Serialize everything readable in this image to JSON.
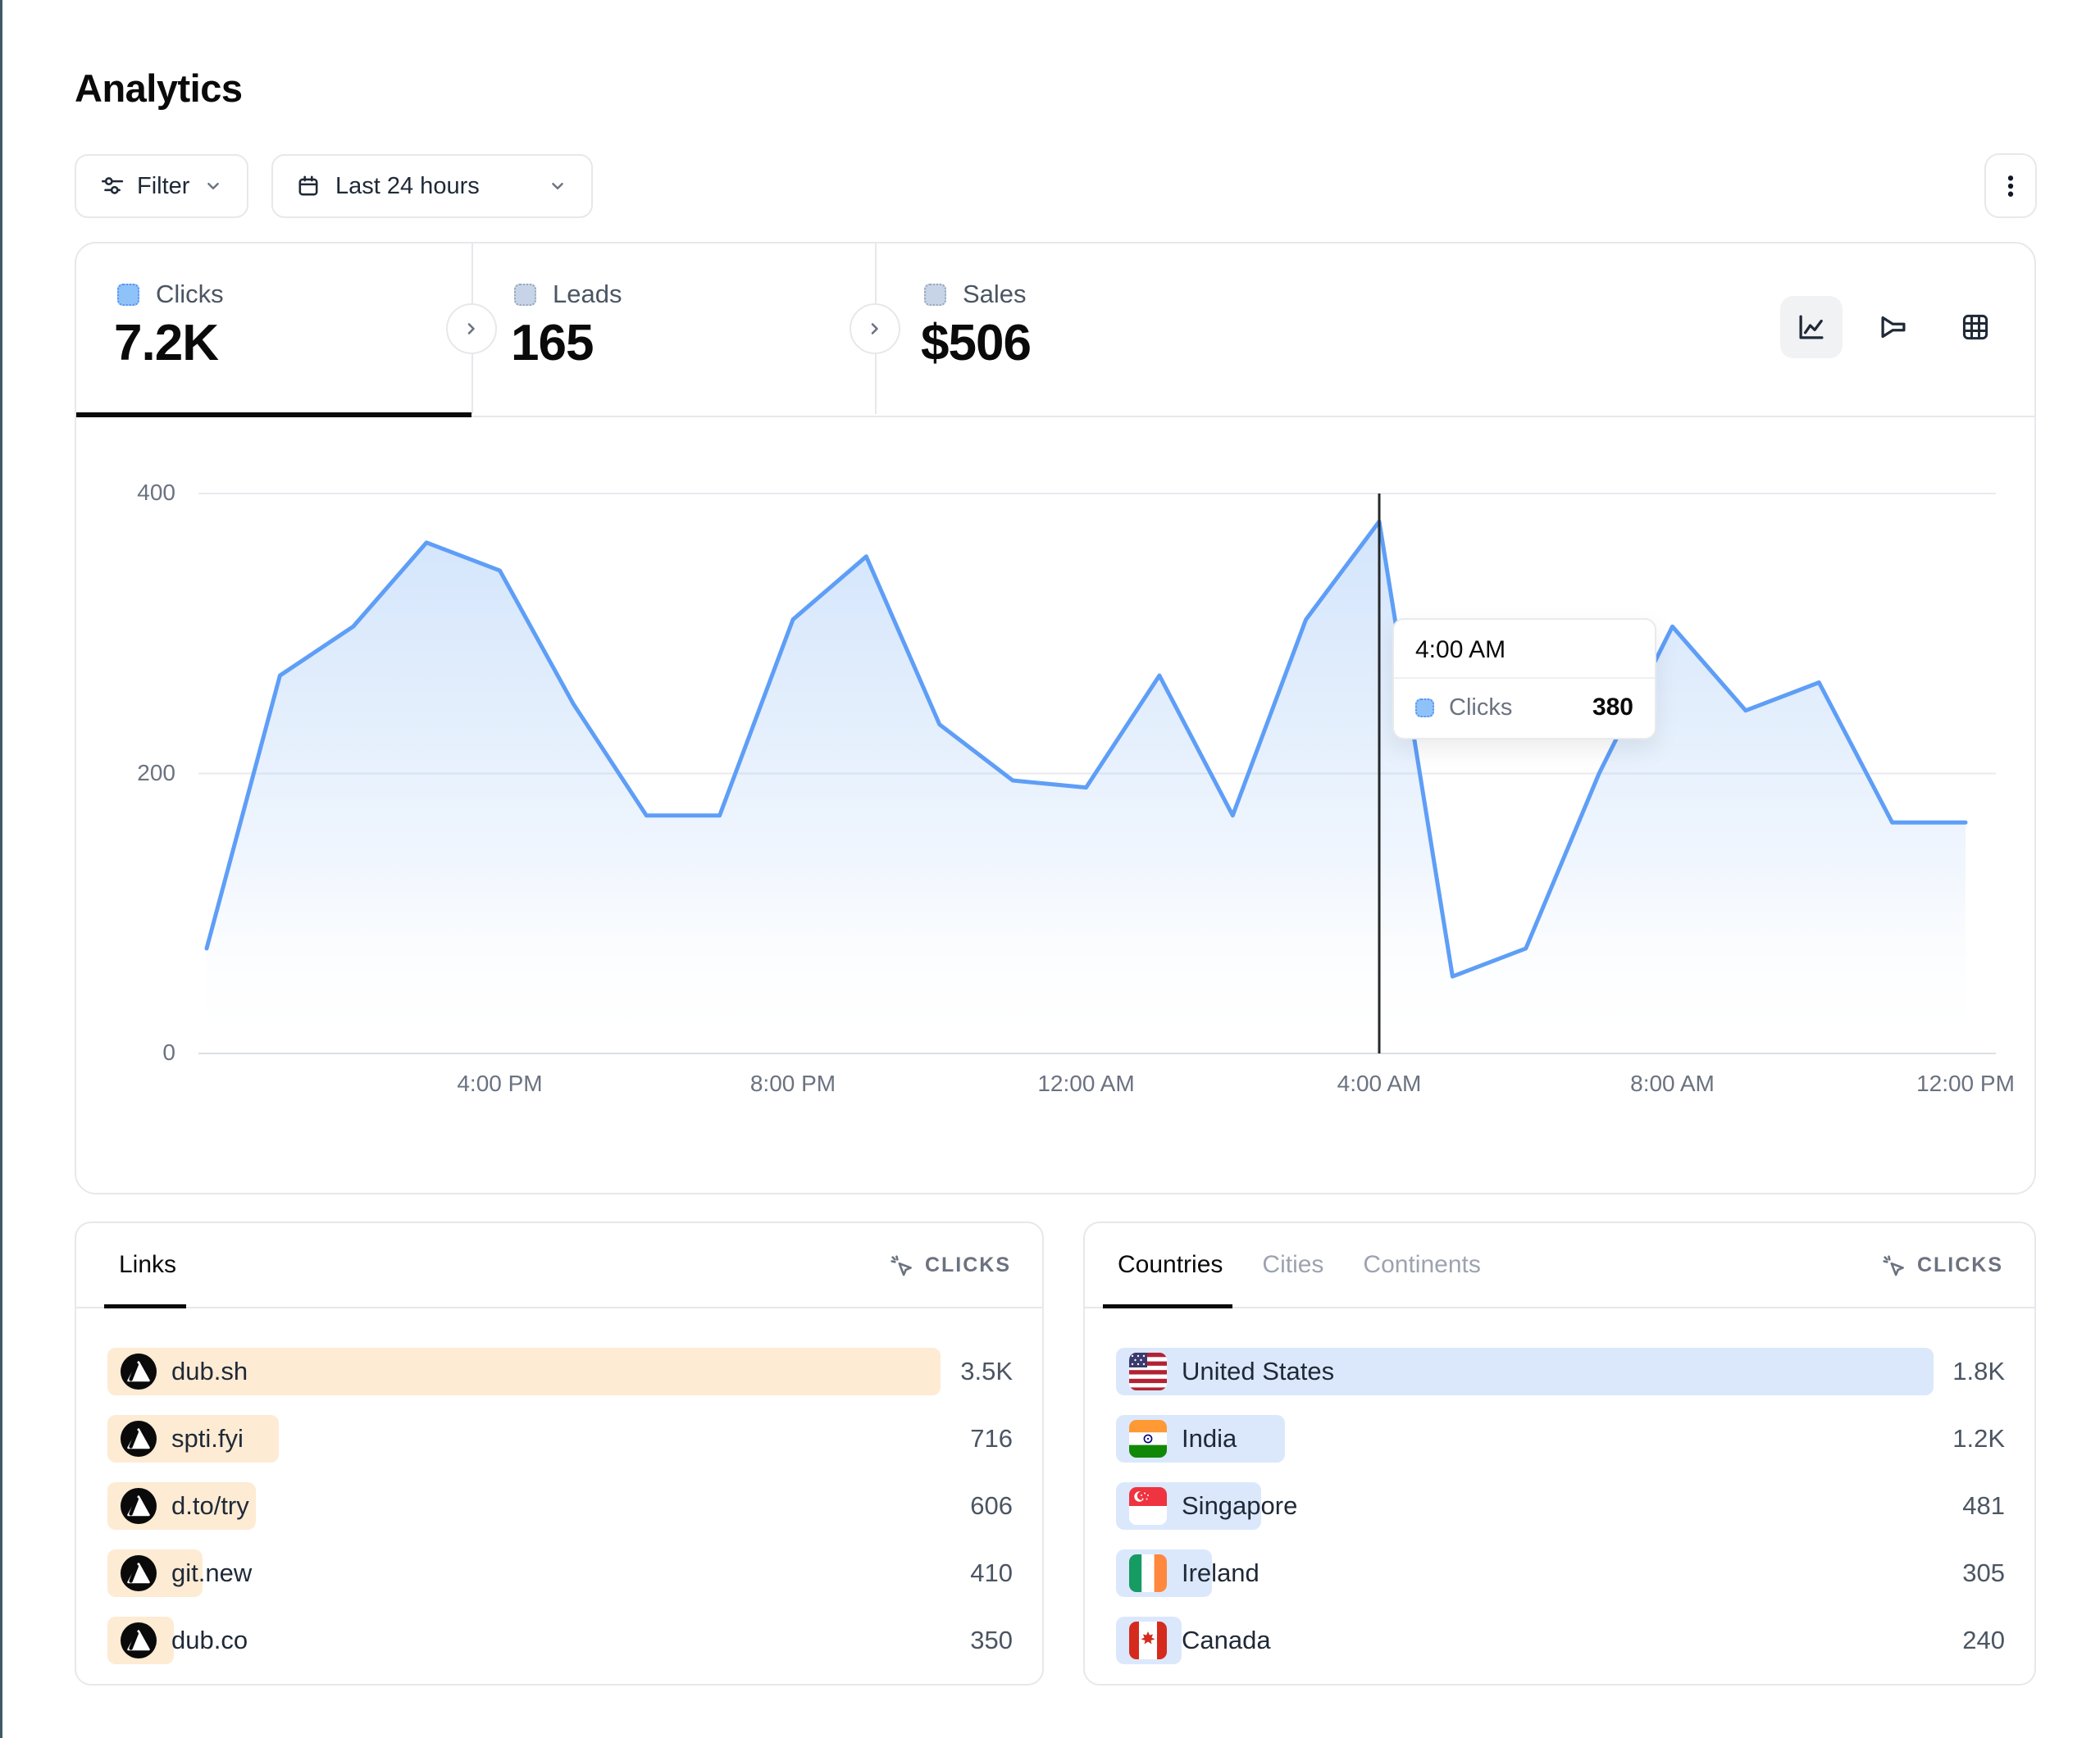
{
  "page": {
    "title": "Analytics"
  },
  "toolbar": {
    "filter": {
      "label": "Filter"
    },
    "date_range": {
      "label": "Last 24 hours"
    }
  },
  "stats": {
    "tabs": [
      {
        "label": "Clicks",
        "value": "7.2K",
        "active": true
      },
      {
        "label": "Leads",
        "value": "165",
        "active": false
      },
      {
        "label": "Sales",
        "value": "$506",
        "active": false
      }
    ]
  },
  "chart_controls": {
    "modes": [
      "line-chart",
      "funnel",
      "table"
    ],
    "active": "line-chart"
  },
  "chart_data": {
    "type": "area",
    "title": "",
    "xlabel": "",
    "ylabel": "",
    "x": [
      "12:00 PM",
      "1:00 PM",
      "2:00 PM",
      "3:00 PM",
      "4:00 PM",
      "5:00 PM",
      "6:00 PM",
      "7:00 PM",
      "8:00 PM",
      "9:00 PM",
      "10:00 PM",
      "11:00 PM",
      "12:00 AM",
      "1:00 AM",
      "2:00 AM",
      "3:00 AM",
      "4:00 AM",
      "5:00 AM",
      "6:00 AM",
      "7:00 AM",
      "8:00 AM",
      "9:00 AM",
      "10:00 AM",
      "11:00 AM",
      "12:00 PM"
    ],
    "series": [
      {
        "name": "Clicks",
        "values": [
          75,
          270,
          305,
          365,
          345,
          250,
          170,
          170,
          310,
          355,
          235,
          195,
          190,
          270,
          170,
          310,
          380,
          55,
          75,
          200,
          305,
          245,
          265,
          165,
          165
        ]
      }
    ],
    "ylim": [
      0,
      400
    ],
    "yticks": [
      0,
      200,
      400
    ],
    "xtick_labels": [
      "4:00 PM",
      "8:00 PM",
      "12:00 AM",
      "4:00 AM",
      "8:00 AM",
      "12:00 PM"
    ],
    "xtick_indices": [
      4,
      8,
      12,
      16,
      20,
      24
    ],
    "grid": true,
    "legend": "none",
    "tooltip": {
      "title": "4:00 AM",
      "series": "Clicks",
      "value": "380",
      "point_index": 16
    }
  },
  "links_panel": {
    "title": "Links",
    "metric_label": "CLICKS",
    "rows": [
      {
        "label": "dub.sh",
        "value": "3.5K",
        "bar_pct": 100
      },
      {
        "label": "spti.fyi",
        "value": "716",
        "bar_pct": 20.5
      },
      {
        "label": "d.to/try",
        "value": "606",
        "bar_pct": 17.8
      },
      {
        "label": "git.new",
        "value": "410",
        "bar_pct": 11.4
      },
      {
        "label": "dub.co",
        "value": "350",
        "bar_pct": 7.9
      }
    ]
  },
  "geo_panel": {
    "tabs": [
      "Countries",
      "Cities",
      "Continents"
    ],
    "active_tab": "Countries",
    "metric_label": "CLICKS",
    "rows": [
      {
        "label": "United States",
        "flag": "us",
        "value": "1.8K",
        "bar_pct": 100
      },
      {
        "label": "India",
        "flag": "in",
        "value": "1.2K",
        "bar_pct": 20.6
      },
      {
        "label": "Singapore",
        "flag": "sg",
        "value": "481",
        "bar_pct": 17.7
      },
      {
        "label": "Ireland",
        "flag": "ie",
        "value": "305",
        "bar_pct": 11.7
      },
      {
        "label": "Canada",
        "flag": "ca",
        "value": "240",
        "bar_pct": 8.0
      }
    ]
  },
  "colors": {
    "line": "#5E9EF7",
    "area_top": "#AFCFF8",
    "grid": "#E8EAEE",
    "axis_zero": "#DCDFE3",
    "crosshair": "#26282B",
    "links_bar": "#FDEBD3",
    "geo_bar": "#DBE8FC",
    "swatch_active": "#8FC2F9",
    "swatch_inactive": "#C7D4E7",
    "window_edge": "#3E5A66"
  }
}
